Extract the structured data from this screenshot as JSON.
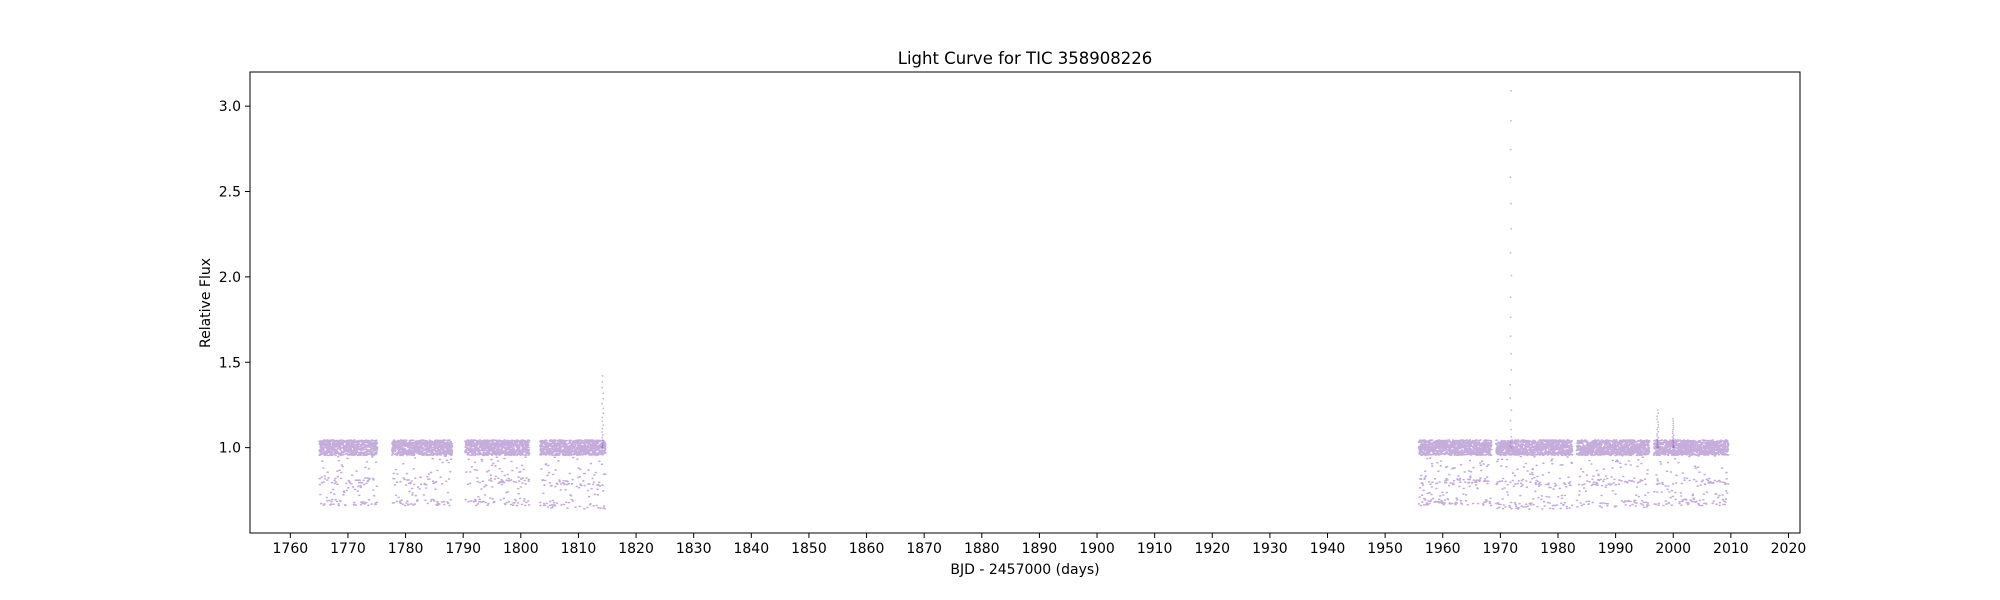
{
  "chart_data": {
    "type": "scatter",
    "title": "Light Curve for TIC 358908226",
    "xlabel": "BJD - 2457000 (days)",
    "ylabel": "Relative Flux",
    "xlim": [
      1753,
      2022
    ],
    "ylim": [
      0.5,
      3.2
    ],
    "xticks": [
      1760,
      1770,
      1780,
      1790,
      1800,
      1810,
      1820,
      1830,
      1840,
      1850,
      1860,
      1870,
      1880,
      1890,
      1900,
      1910,
      1920,
      1930,
      1940,
      1950,
      1960,
      1970,
      1980,
      1990,
      2000,
      2010,
      2020
    ],
    "xtick_labels": [
      "1760",
      "1770",
      "1780",
      "1790",
      "1800",
      "1810",
      "1820",
      "1830",
      "1840",
      "1850",
      "1860",
      "1870",
      "1880",
      "1890",
      "1900",
      "1910",
      "1920",
      "1930",
      "1940",
      "1950",
      "1960",
      "1970",
      "1980",
      "1990",
      "2000",
      "2010",
      "2020"
    ],
    "yticks": [
      1.0,
      1.5,
      2.0,
      2.5,
      3.0
    ],
    "ytick_labels": [
      "1.0",
      "1.5",
      "2.0",
      "2.5",
      "3.0"
    ],
    "grid": false,
    "point_color": "#9467bd",
    "segments": [
      {
        "start": 1765.0,
        "end": 1775.0,
        "baseline": 1.0,
        "min_flux": 0.66
      },
      {
        "start": 1777.6,
        "end": 1788.0,
        "baseline": 1.0,
        "min_flux": 0.66
      },
      {
        "start": 1790.3,
        "end": 1801.4,
        "baseline": 1.0,
        "min_flux": 0.66
      },
      {
        "start": 1803.3,
        "end": 1814.6,
        "baseline": 1.0,
        "min_flux": 0.64
      },
      {
        "start": 1955.8,
        "end": 1968.4,
        "baseline": 1.0,
        "min_flux": 0.66
      },
      {
        "start": 1969.2,
        "end": 1982.4,
        "baseline": 1.0,
        "min_flux": 0.64
      },
      {
        "start": 1983.2,
        "end": 1995.8,
        "baseline": 1.0,
        "min_flux": 0.65
      },
      {
        "start": 1996.6,
        "end": 2009.5,
        "baseline": 1.0,
        "min_flux": 0.66
      }
    ],
    "flares": [
      {
        "x": 1814.2,
        "peak": 1.42
      },
      {
        "x": 1971.8,
        "peak": 3.09
      },
      {
        "x": 1997.3,
        "peak": 1.22
      },
      {
        "x": 2000.0,
        "peak": 1.17
      }
    ]
  }
}
